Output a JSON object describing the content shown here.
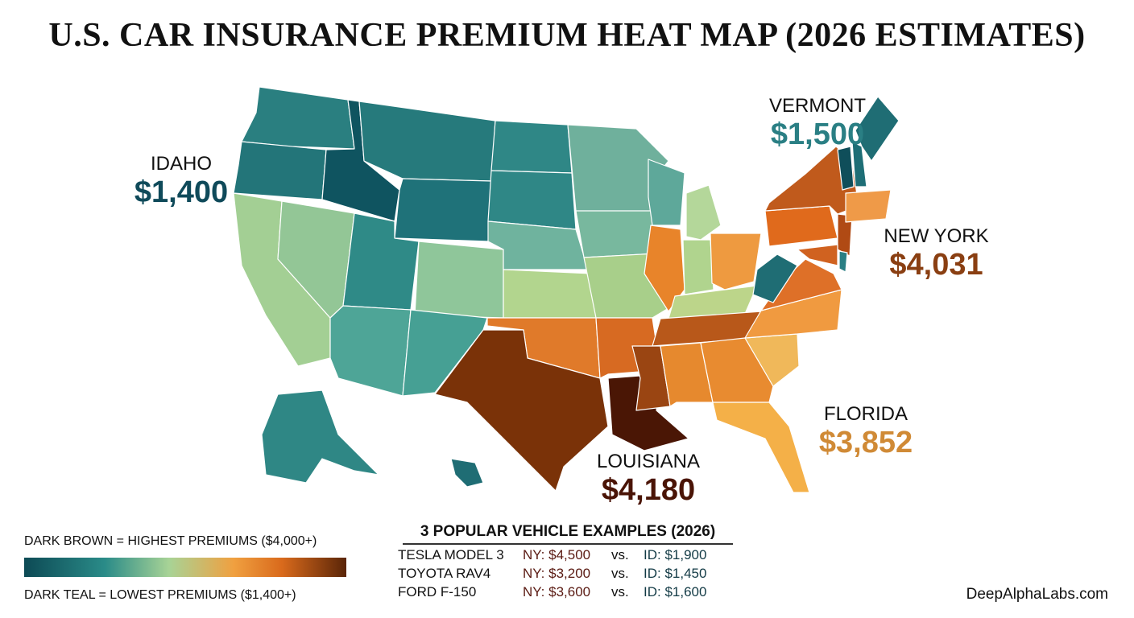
{
  "title": "U.S. CAR INSURANCE PREMIUM HEAT MAP (2026 ESTIMATES)",
  "colors": {
    "dark_teal": "#0f5460",
    "teal": "#2a8584",
    "light_green": "#a8d396",
    "orange": "#e8842a",
    "dark_brown": "#5a2108"
  },
  "callouts": {
    "idaho": {
      "name": "IDAHO",
      "value": "$1,400",
      "color": "#0f4a5a"
    },
    "vermont": {
      "name": "VERMONT",
      "value": "$1,500",
      "color": "#2a7f84"
    },
    "new_york": {
      "name": "NEW YORK",
      "value": "$4,031",
      "color": "#8a3f12"
    },
    "florida": {
      "name": "FLORIDA",
      "value": "$3,852",
      "color": "#d08a36"
    },
    "louisiana": {
      "name": "LOUISIANA",
      "value": "$4,180",
      "color": "#4a1406"
    }
  },
  "legend": {
    "high": "DARK BROWN = HIGHEST PREMIUMS ($4,000+)",
    "low": "DARK TEAL = LOWEST PREMIUMS ($1,400+)"
  },
  "vehicles": {
    "title": "3 POPULAR VEHICLE EXAMPLES (2026)",
    "rows": [
      {
        "model": "TESLA MODEL 3",
        "ny": "NY: $4,500",
        "vs": "vs.",
        "id": "ID: $1,900"
      },
      {
        "model": "TOYOTA RAV4",
        "ny": "NY: $3,200",
        "vs": "vs.",
        "id": "ID: $1,450"
      },
      {
        "model": "FORD F-150",
        "ny": "NY: $3,600",
        "vs": "vs.",
        "id": "ID: $1,600"
      }
    ]
  },
  "brand": "DeepAlphaLabs.com"
}
